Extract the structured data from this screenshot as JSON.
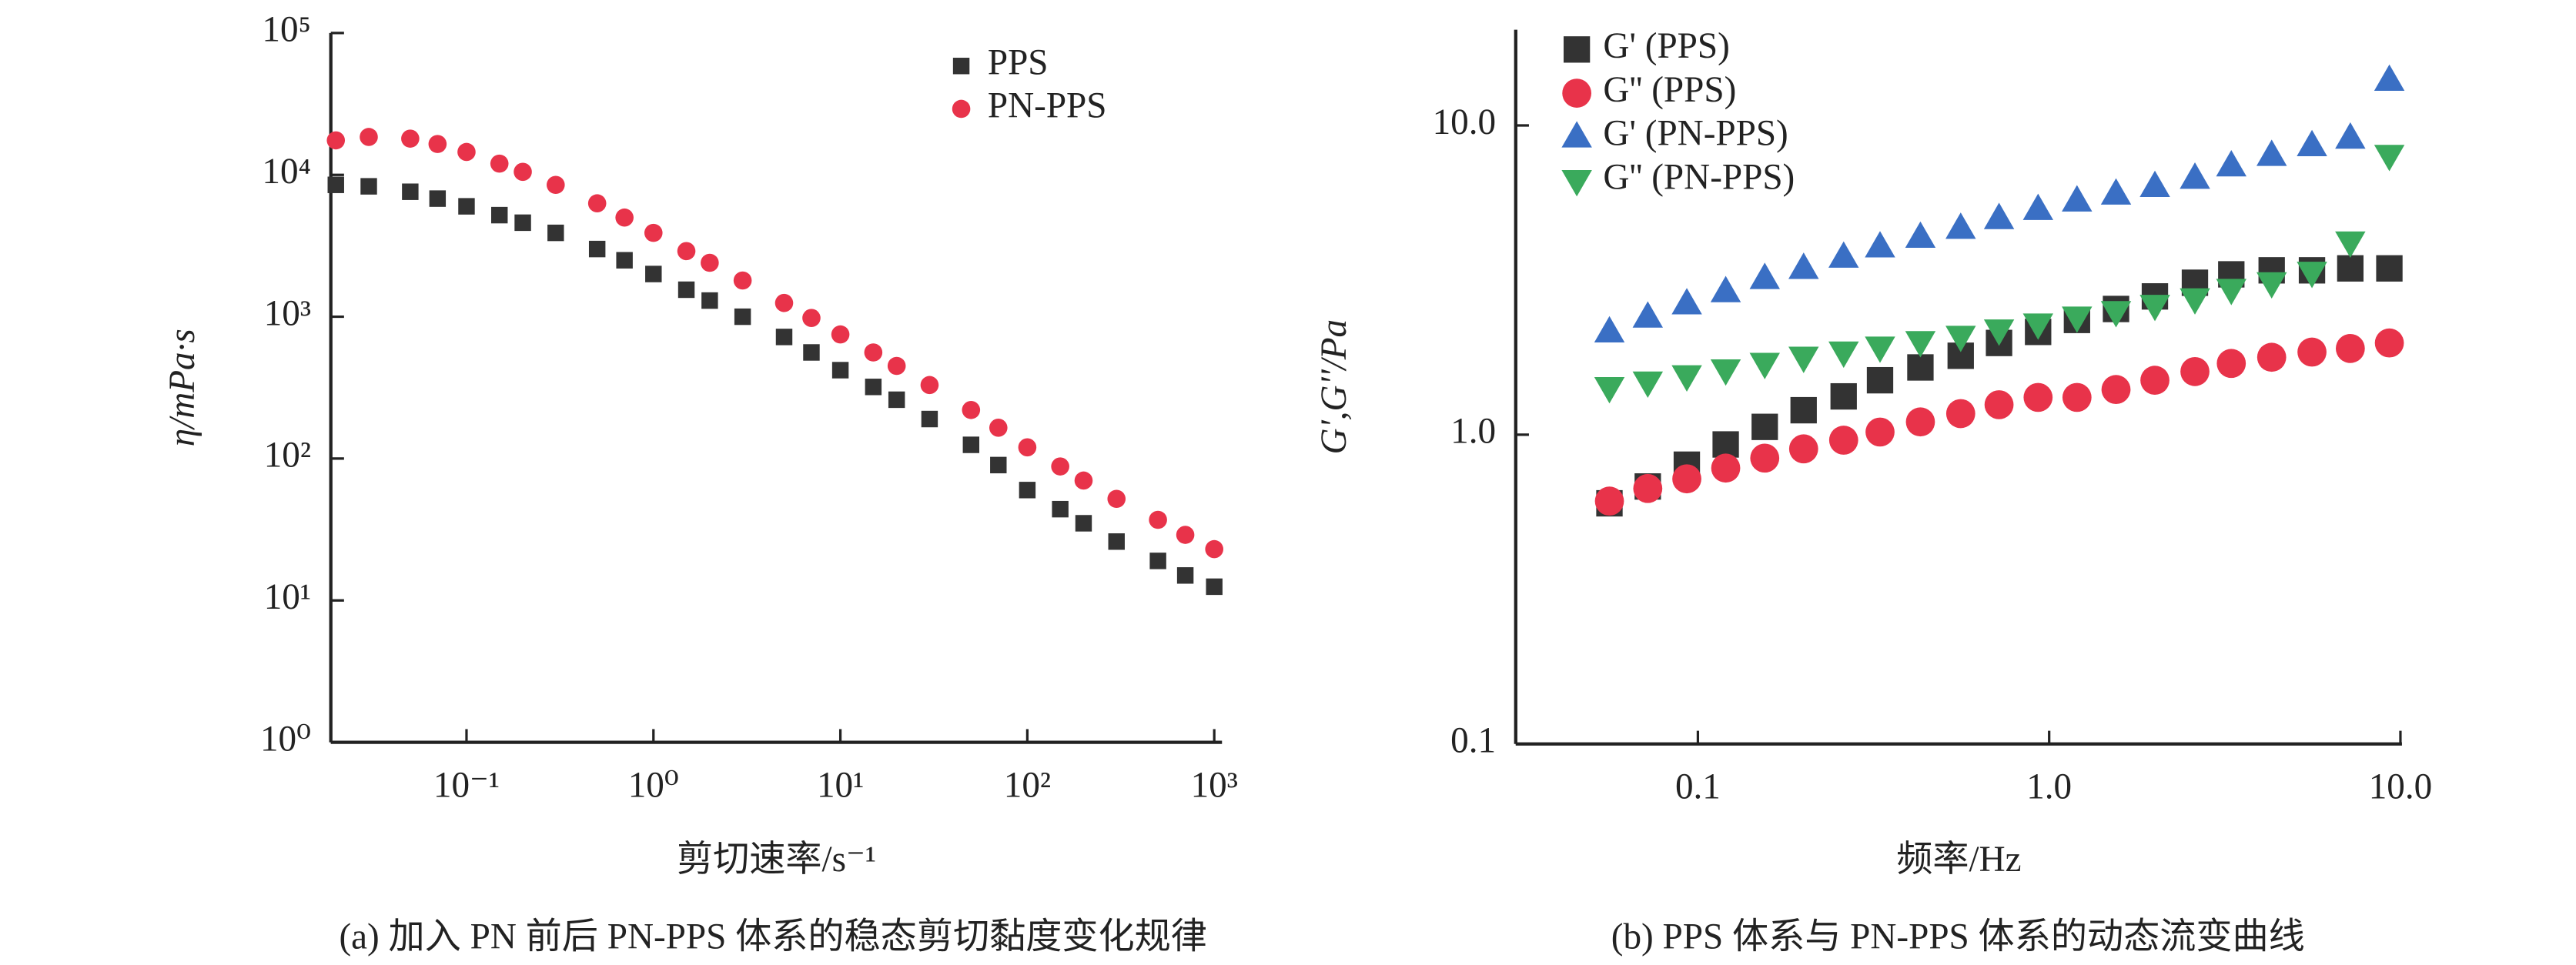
{
  "chart_data": [
    {
      "type": "scatter",
      "log_x": true,
      "log_y": true,
      "x_label": "剪切速率/s⁻¹",
      "y_label": "η/mPa·s",
      "caption": "(a) 加入 PN 前后 PN-PPS 体系的稳态剪切黏度变化规律",
      "xlim": [
        0.0188,
        1100
      ],
      "ylim": [
        1,
        100000
      ],
      "xticks": [
        {
          "value": 0.1,
          "label": "10⁻¹"
        },
        {
          "value": 1,
          "label": "10⁰"
        },
        {
          "value": 10,
          "label": "10¹"
        },
        {
          "value": 100,
          "label": "10²"
        },
        {
          "value": 1000,
          "label": "10³"
        }
      ],
      "yticks": [
        {
          "value": 1,
          "label": "10⁰"
        },
        {
          "value": 10,
          "label": "10¹"
        },
        {
          "value": 100,
          "label": "10²"
        },
        {
          "value": 1000,
          "label": "10³"
        },
        {
          "value": 10000,
          "label": "10⁴"
        },
        {
          "value": 100000,
          "label": "10⁵"
        }
      ],
      "x": [
        0.02,
        0.03,
        0.05,
        0.07,
        0.1,
        0.15,
        0.2,
        0.3,
        0.5,
        0.7,
        1,
        1.5,
        2,
        3,
        5,
        7,
        10,
        15,
        20,
        30,
        50,
        70,
        100,
        150,
        200,
        300,
        500,
        700,
        1000
      ],
      "series": [
        {
          "name": "PPS",
          "color": "#333333",
          "marker": "square",
          "values": [
            8500,
            8300,
            7600,
            6800,
            6000,
            5200,
            4600,
            3900,
            3000,
            2500,
            2000,
            1550,
            1300,
            1000,
            720,
            560,
            420,
            320,
            260,
            190,
            125,
            90,
            60,
            44,
            35,
            26,
            19,
            15,
            12.5
          ]
        },
        {
          "name": "PN-PPS",
          "color": "#e8334a",
          "marker": "circle",
          "values": [
            17500,
            18500,
            18000,
            16500,
            14500,
            12000,
            10500,
            8500,
            6300,
            5000,
            3900,
            2900,
            2400,
            1800,
            1250,
            980,
            750,
            560,
            450,
            330,
            220,
            165,
            120,
            88,
            70,
            52,
            37,
            29,
            23
          ]
        }
      ]
    },
    {
      "type": "scatter",
      "log_x": true,
      "log_y": true,
      "x_label": "频率/Hz",
      "y_label": "G',G''/Pa",
      "caption": "(b) PPS 体系与 PN-PPS 体系的动态流变曲线",
      "xlim": [
        0.0303,
        10.1
      ],
      "ylim": [
        0.1,
        20.4
      ],
      "xticks": [
        0.1,
        {
          "value": 1,
          "label": "1.0"
        },
        {
          "value": 10,
          "label": "10.0"
        }
      ],
      "yticks": [
        0.1,
        {
          "value": 1,
          "label": "1.0"
        },
        {
          "value": 10,
          "label": "10.0"
        }
      ],
      "x": [
        0.056,
        0.072,
        0.093,
        0.12,
        0.155,
        0.2,
        0.26,
        0.33,
        0.43,
        0.56,
        0.72,
        0.93,
        1.2,
        1.55,
        2.0,
        2.6,
        3.3,
        4.3,
        5.6,
        7.2,
        9.3
      ],
      "series": [
        {
          "name": "G' (PPS)",
          "color": "#333333",
          "marker": "square",
          "values": [
            0.6,
            0.68,
            0.8,
            0.93,
            1.06,
            1.2,
            1.33,
            1.5,
            1.65,
            1.8,
            1.98,
            2.15,
            2.35,
            2.55,
            2.8,
            3.1,
            3.3,
            3.4,
            3.4,
            3.45,
            3.45
          ]
        },
        {
          "name": "G'' (PPS)",
          "color": "#e8334a",
          "marker": "circle",
          "values": [
            0.61,
            0.67,
            0.72,
            0.78,
            0.84,
            0.9,
            0.96,
            1.02,
            1.1,
            1.17,
            1.25,
            1.32,
            1.32,
            1.4,
            1.5,
            1.6,
            1.7,
            1.78,
            1.85,
            1.9,
            1.98
          ]
        },
        {
          "name": "G' (PN-PPS)",
          "color": "#3a6fc4",
          "marker": "triangle-up",
          "values": [
            2.15,
            2.4,
            2.65,
            2.9,
            3.2,
            3.45,
            3.75,
            4.05,
            4.35,
            4.65,
            5.0,
            5.35,
            5.7,
            6.0,
            6.35,
            6.75,
            7.4,
            8.0,
            8.6,
            9.1,
            14
          ]
        },
        {
          "name": "G'' (PN-PPS)",
          "color": "#3aaa5c",
          "marker": "triangle-down",
          "values": [
            1.42,
            1.48,
            1.55,
            1.62,
            1.7,
            1.78,
            1.85,
            1.92,
            2.0,
            2.08,
            2.18,
            2.28,
            2.4,
            2.5,
            2.62,
            2.75,
            2.95,
            3.1,
            3.35,
            4.2,
            8.0
          ]
        }
      ]
    }
  ]
}
